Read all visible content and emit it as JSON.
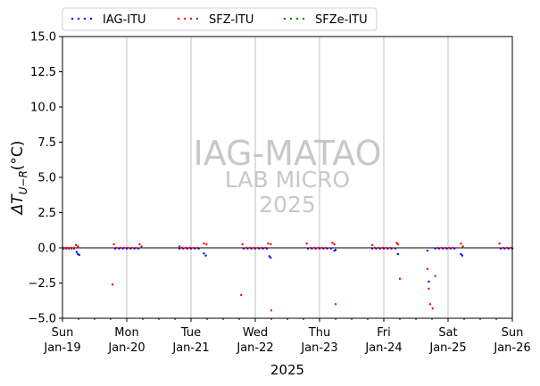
{
  "chart_data": {
    "type": "scatter",
    "xlabel": "2025",
    "ylabel": "ΔT_{U−R}(°C)",
    "ylim": [
      -5,
      15
    ],
    "xlim": [
      0,
      7
    ],
    "yticks": [
      -5.0,
      -2.5,
      0.0,
      2.5,
      5.0,
      7.5,
      10.0,
      12.5,
      15.0
    ],
    "ytick_labels": [
      "−5.0",
      "−2.5",
      "0.0",
      "2.5",
      "5.0",
      "7.5",
      "10.0",
      "12.5",
      "15.0"
    ],
    "xticks": [
      {
        "x": 0,
        "day": "Sun",
        "date": "Jan-19"
      },
      {
        "x": 1,
        "day": "Mon",
        "date": "Jan-20"
      },
      {
        "x": 2,
        "day": "Tue",
        "date": "Jan-21"
      },
      {
        "x": 3,
        "day": "Wed",
        "date": "Jan-22"
      },
      {
        "x": 4,
        "day": "Thu",
        "date": "Jan-23"
      },
      {
        "x": 5,
        "day": "Fri",
        "date": "Jan-24"
      },
      {
        "x": 6,
        "day": "Sat",
        "date": "Jan-25"
      },
      {
        "x": 7,
        "day": "Sun",
        "date": "Jan-26"
      }
    ],
    "grid": "vertical",
    "legend_position": "top-left, above plot",
    "watermark": {
      "line1": "IAG-MATAO",
      "line2": "LAB MICRO",
      "line3": "2025"
    },
    "series": [
      {
        "name": "IAG-ITU",
        "color": "#0000ff",
        "points": [
          [
            0.02,
            -0.05
          ],
          [
            0.06,
            -0.05
          ],
          [
            0.1,
            -0.05
          ],
          [
            0.14,
            -0.05
          ],
          [
            0.18,
            -0.05
          ],
          [
            0.22,
            -0.3
          ],
          [
            0.24,
            -0.45
          ],
          [
            0.26,
            -0.5
          ],
          [
            0.82,
            -0.05
          ],
          [
            0.88,
            -0.05
          ],
          [
            0.94,
            -0.05
          ],
          [
            1.0,
            -0.05
          ],
          [
            1.06,
            -0.05
          ],
          [
            1.12,
            -0.05
          ],
          [
            1.18,
            -0.05
          ],
          [
            1.82,
            -0.05
          ],
          [
            1.88,
            -0.05
          ],
          [
            1.94,
            -0.05
          ],
          [
            2.0,
            -0.05
          ],
          [
            2.06,
            -0.05
          ],
          [
            2.12,
            -0.05
          ],
          [
            2.2,
            -0.4
          ],
          [
            2.23,
            -0.55
          ],
          [
            2.82,
            -0.05
          ],
          [
            2.88,
            -0.05
          ],
          [
            2.94,
            -0.05
          ],
          [
            3.0,
            -0.05
          ],
          [
            3.06,
            -0.05
          ],
          [
            3.12,
            -0.05
          ],
          [
            3.18,
            -0.05
          ],
          [
            3.22,
            -0.6
          ],
          [
            3.24,
            -0.7
          ],
          [
            3.82,
            -0.05
          ],
          [
            3.88,
            -0.05
          ],
          [
            3.94,
            -0.05
          ],
          [
            4.0,
            -0.05
          ],
          [
            4.06,
            -0.05
          ],
          [
            4.12,
            -0.05
          ],
          [
            4.18,
            -0.05
          ],
          [
            4.23,
            -0.2
          ],
          [
            4.25,
            -0.15
          ],
          [
            4.82,
            -0.05
          ],
          [
            4.88,
            -0.05
          ],
          [
            4.94,
            -0.05
          ],
          [
            5.0,
            -0.05
          ],
          [
            5.06,
            -0.05
          ],
          [
            5.12,
            -0.05
          ],
          [
            5.18,
            -0.05
          ],
          [
            5.22,
            -0.45
          ],
          [
            5.68,
            -0.2
          ],
          [
            5.7,
            -2.4
          ],
          [
            5.8,
            -0.05
          ],
          [
            5.86,
            -0.05
          ],
          [
            5.92,
            -0.05
          ],
          [
            5.98,
            -0.05
          ],
          [
            6.04,
            -0.05
          ],
          [
            6.1,
            -0.05
          ],
          [
            6.2,
            -0.45
          ],
          [
            6.22,
            -0.55
          ],
          [
            6.82,
            -0.05
          ],
          [
            6.88,
            -0.05
          ],
          [
            6.94,
            -0.05
          ],
          [
            7.0,
            -0.05
          ]
        ]
      },
      {
        "name": "SFZ-ITU",
        "color": "#ff0000",
        "points": [
          [
            0.02,
            0.0
          ],
          [
            0.06,
            0.0
          ],
          [
            0.1,
            0.0
          ],
          [
            0.14,
            0.0
          ],
          [
            0.18,
            0.0
          ],
          [
            0.21,
            0.2
          ],
          [
            0.24,
            0.1
          ],
          [
            0.8,
            0.25
          ],
          [
            0.78,
            -2.6
          ],
          [
            0.84,
            0.0
          ],
          [
            0.9,
            0.0
          ],
          [
            0.96,
            0.0
          ],
          [
            1.02,
            0.0
          ],
          [
            1.08,
            0.0
          ],
          [
            1.14,
            0.0
          ],
          [
            1.2,
            0.25
          ],
          [
            1.23,
            0.1
          ],
          [
            1.82,
            0.1
          ],
          [
            1.86,
            0.0
          ],
          [
            1.92,
            0.0
          ],
          [
            1.98,
            0.0
          ],
          [
            2.04,
            0.0
          ],
          [
            2.1,
            0.0
          ],
          [
            2.2,
            0.3
          ],
          [
            2.24,
            0.25
          ],
          [
            2.78,
            -3.35
          ],
          [
            2.8,
            0.25
          ],
          [
            2.86,
            0.0
          ],
          [
            2.92,
            0.0
          ],
          [
            2.98,
            0.0
          ],
          [
            3.04,
            0.0
          ],
          [
            3.1,
            0.0
          ],
          [
            3.16,
            0.0
          ],
          [
            3.2,
            0.3
          ],
          [
            3.24,
            0.25
          ],
          [
            3.25,
            -4.45
          ],
          [
            3.8,
            0.3
          ],
          [
            3.86,
            0.0
          ],
          [
            3.92,
            0.0
          ],
          [
            3.98,
            0.0
          ],
          [
            4.04,
            0.0
          ],
          [
            4.1,
            0.0
          ],
          [
            4.2,
            0.35
          ],
          [
            4.23,
            0.25
          ],
          [
            4.25,
            -4.0
          ],
          [
            4.82,
            0.2
          ],
          [
            4.86,
            0.0
          ],
          [
            4.92,
            0.0
          ],
          [
            4.98,
            0.0
          ],
          [
            5.04,
            0.0
          ],
          [
            5.1,
            0.0
          ],
          [
            5.2,
            0.35
          ],
          [
            5.22,
            0.25
          ],
          [
            5.25,
            -2.2
          ],
          [
            5.68,
            -1.5
          ],
          [
            5.7,
            -2.9
          ],
          [
            5.72,
            -4.0
          ],
          [
            5.76,
            -4.3
          ],
          [
            5.8,
            -2.0
          ],
          [
            5.84,
            0.0
          ],
          [
            5.9,
            0.0
          ],
          [
            5.96,
            0.0
          ],
          [
            6.02,
            0.0
          ],
          [
            6.08,
            0.0
          ],
          [
            6.2,
            0.3
          ],
          [
            6.23,
            0.1
          ],
          [
            6.8,
            0.3
          ],
          [
            6.86,
            0.0
          ],
          [
            6.92,
            0.0
          ],
          [
            6.98,
            0.0
          ]
        ]
      },
      {
        "name": "SFZe-ITU",
        "color": "#008000",
        "points": []
      }
    ]
  }
}
